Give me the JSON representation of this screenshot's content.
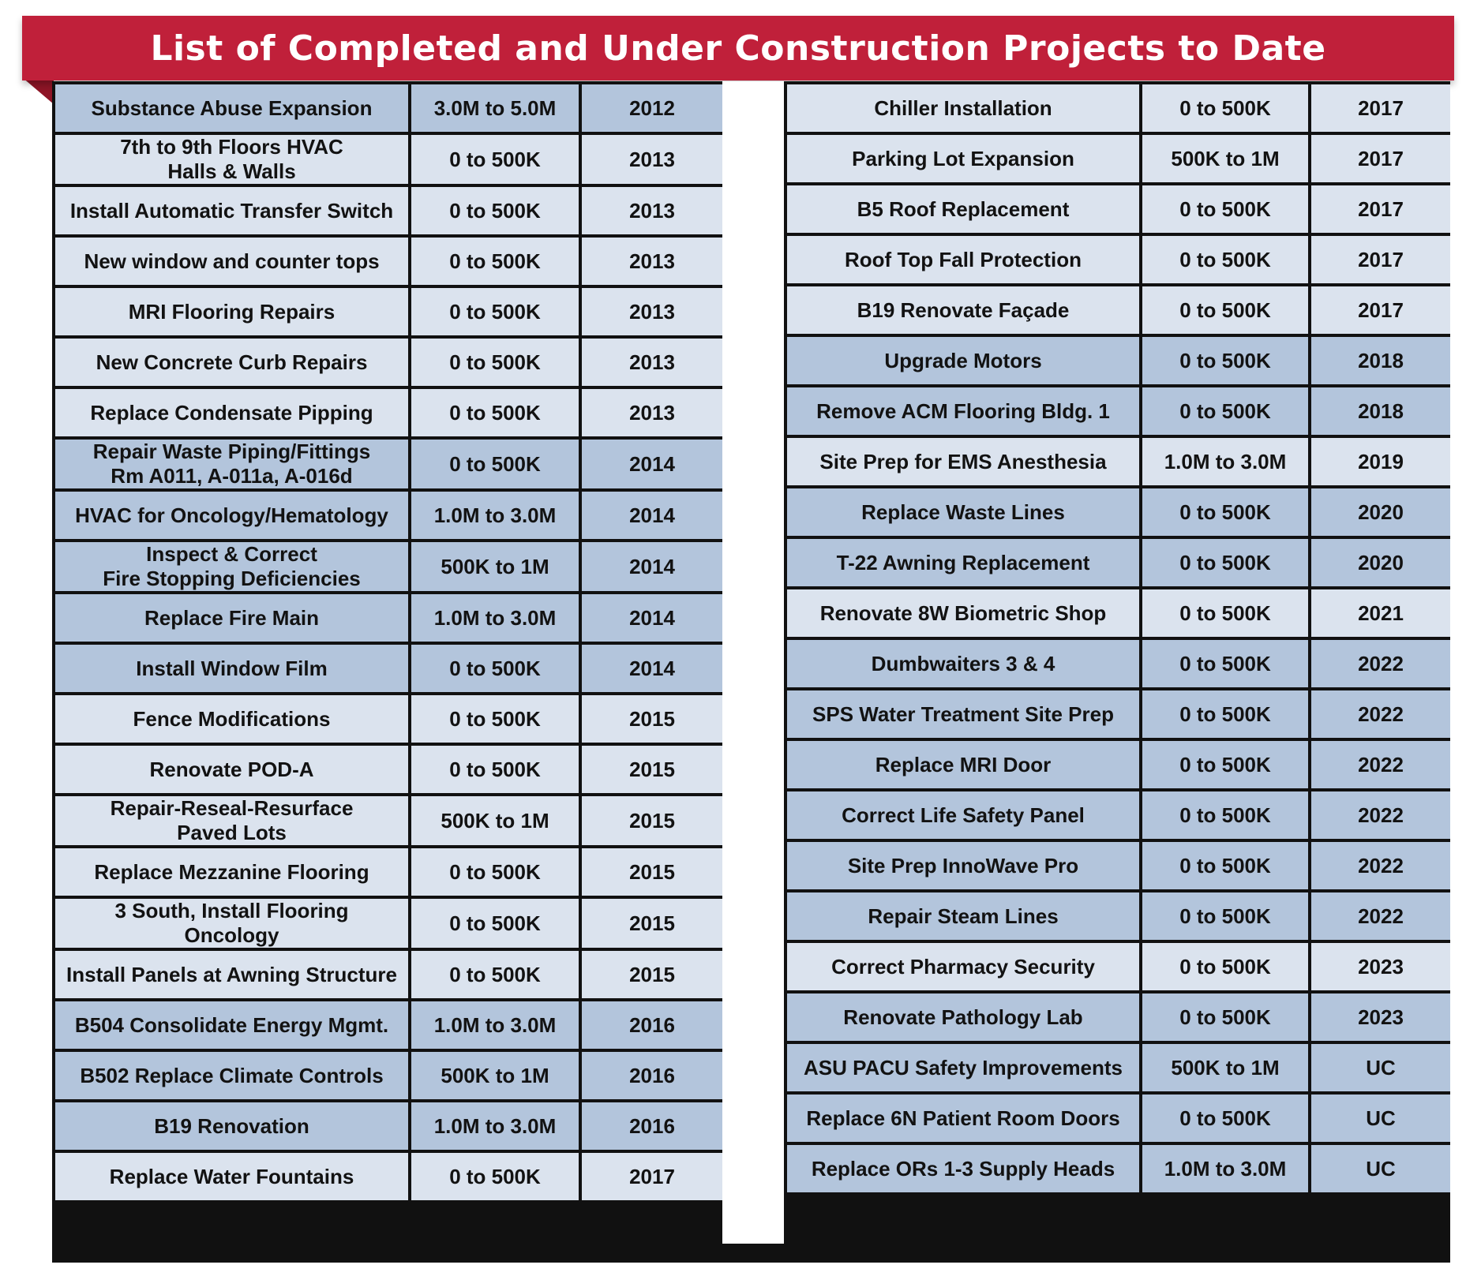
{
  "title": "List of Completed and Under Construction Projects to Date",
  "colors": {
    "banner": "#c0203a",
    "row_light": "#dbe3ee",
    "row_dark": "#b3c5dc",
    "border": "#111111"
  },
  "left_table": [
    {
      "name": "Substance Abuse Expansion",
      "cost": "3.0M to 5.0M",
      "year": "2012",
      "shade": "dark"
    },
    {
      "name": "7th to 9th Floors HVAC\nHalls & Walls",
      "cost": "0 to 500K",
      "year": "2013",
      "shade": "light"
    },
    {
      "name": "Install Automatic Transfer Switch",
      "cost": "0 to 500K",
      "year": "2013",
      "shade": "light"
    },
    {
      "name": "New window and counter tops",
      "cost": "0 to 500K",
      "year": "2013",
      "shade": "light"
    },
    {
      "name": "MRI Flooring Repairs",
      "cost": "0 to 500K",
      "year": "2013",
      "shade": "light"
    },
    {
      "name": "New Concrete Curb Repairs",
      "cost": "0 to 500K",
      "year": "2013",
      "shade": "light"
    },
    {
      "name": "Replace Condensate Pipping",
      "cost": "0 to 500K",
      "year": "2013",
      "shade": "light"
    },
    {
      "name": "Repair Waste Piping/Fittings\nRm A011, A-011a, A-016d",
      "cost": "0 to 500K",
      "year": "2014",
      "shade": "dark"
    },
    {
      "name": "HVAC for Oncology/Hematology",
      "cost": "1.0M to 3.0M",
      "year": "2014",
      "shade": "dark"
    },
    {
      "name": "Inspect & Correct\nFire Stopping Deficiencies",
      "cost": "500K to 1M",
      "year": "2014",
      "shade": "dark"
    },
    {
      "name": "Replace Fire Main",
      "cost": "1.0M to 3.0M",
      "year": "2014",
      "shade": "dark"
    },
    {
      "name": "Install Window Film",
      "cost": "0 to 500K",
      "year": "2014",
      "shade": "dark"
    },
    {
      "name": "Fence Modifications",
      "cost": "0 to 500K",
      "year": "2015",
      "shade": "light"
    },
    {
      "name": "Renovate POD-A",
      "cost": "0 to 500K",
      "year": "2015",
      "shade": "light"
    },
    {
      "name": "Repair-Reseal-Resurface\nPaved Lots",
      "cost": "500K to 1M",
      "year": "2015",
      "shade": "light"
    },
    {
      "name": "Replace Mezzanine Flooring",
      "cost": "0 to 500K",
      "year": "2015",
      "shade": "light"
    },
    {
      "name": "3 South, Install Flooring\nOncology",
      "cost": "0 to 500K",
      "year": "2015",
      "shade": "light"
    },
    {
      "name": "Install Panels at Awning Structure",
      "cost": "0 to 500K",
      "year": "2015",
      "shade": "light"
    },
    {
      "name": "B504 Consolidate Energy Mgmt.",
      "cost": "1.0M to 3.0M",
      "year": "2016",
      "shade": "dark"
    },
    {
      "name": "B502 Replace Climate Controls",
      "cost": "500K to 1M",
      "year": "2016",
      "shade": "dark"
    },
    {
      "name": "B19 Renovation",
      "cost": "1.0M to 3.0M",
      "year": "2016",
      "shade": "dark"
    },
    {
      "name": "Replace Water Fountains",
      "cost": "0 to 500K",
      "year": "2017",
      "shade": "light"
    }
  ],
  "right_table": [
    {
      "name": "Chiller Installation",
      "cost": "0 to 500K",
      "year": "2017",
      "shade": "light"
    },
    {
      "name": "Parking Lot Expansion",
      "cost": "500K to 1M",
      "year": "2017",
      "shade": "light"
    },
    {
      "name": "B5 Roof Replacement",
      "cost": "0 to 500K",
      "year": "2017",
      "shade": "light"
    },
    {
      "name": "Roof Top Fall Protection",
      "cost": "0 to 500K",
      "year": "2017",
      "shade": "light"
    },
    {
      "name": "B19 Renovate Façade",
      "cost": "0 to 500K",
      "year": "2017",
      "shade": "light"
    },
    {
      "name": "Upgrade Motors",
      "cost": "0 to 500K",
      "year": "2018",
      "shade": "dark"
    },
    {
      "name": "Remove ACM Flooring Bldg. 1",
      "cost": "0 to 500K",
      "year": "2018",
      "shade": "dark"
    },
    {
      "name": "Site Prep for EMS Anesthesia",
      "cost": "1.0M to 3.0M",
      "year": "2019",
      "shade": "light"
    },
    {
      "name": "Replace Waste Lines",
      "cost": "0 to 500K",
      "year": "2020",
      "shade": "dark"
    },
    {
      "name": "T-22 Awning Replacement",
      "cost": "0 to 500K",
      "year": "2020",
      "shade": "dark"
    },
    {
      "name": "Renovate 8W Biometric Shop",
      "cost": "0 to 500K",
      "year": "2021",
      "shade": "light"
    },
    {
      "name": "Dumbwaiters 3 & 4",
      "cost": "0 to 500K",
      "year": "2022",
      "shade": "dark"
    },
    {
      "name": "SPS Water Treatment Site Prep",
      "cost": "0 to 500K",
      "year": "2022",
      "shade": "dark"
    },
    {
      "name": "Replace MRI Door",
      "cost": "0 to 500K",
      "year": "2022",
      "shade": "dark"
    },
    {
      "name": "Correct Life Safety Panel",
      "cost": "0 to 500K",
      "year": "2022",
      "shade": "dark"
    },
    {
      "name": "Site Prep InnoWave Pro",
      "cost": "0 to 500K",
      "year": "2022",
      "shade": "dark"
    },
    {
      "name": "Repair Steam Lines",
      "cost": "0 to 500K",
      "year": "2022",
      "shade": "dark"
    },
    {
      "name": "Correct Pharmacy Security",
      "cost": "0 to 500K",
      "year": "2023",
      "shade": "light"
    },
    {
      "name": "Renovate Pathology Lab",
      "cost": "0 to 500K",
      "year": "2023",
      "shade": "dark"
    },
    {
      "name": "ASU PACU Safety Improvements",
      "cost": "500K to 1M",
      "year": "UC",
      "shade": "dark"
    },
    {
      "name": "Replace 6N Patient Room Doors",
      "cost": "0 to 500K",
      "year": "UC",
      "shade": "dark"
    },
    {
      "name": "Replace ORs 1-3 Supply Heads",
      "cost": "1.0M to 3.0M",
      "year": "UC",
      "shade": "dark"
    }
  ]
}
